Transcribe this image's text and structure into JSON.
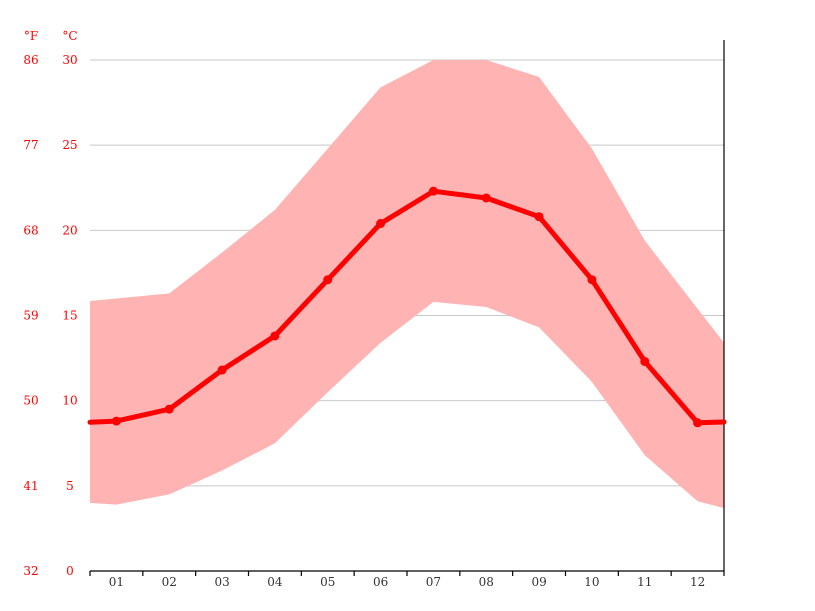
{
  "chart_data": {
    "type": "line",
    "title": "",
    "xlabel": "",
    "ylabel": "",
    "units": {
      "fahrenheit": "°F",
      "celsius": "°C"
    },
    "categories": [
      "01",
      "02",
      "03",
      "04",
      "05",
      "06",
      "07",
      "08",
      "09",
      "10",
      "11",
      "12"
    ],
    "ylim": [
      0,
      30
    ],
    "y_ticks_celsius": [
      "0",
      "5",
      "10",
      "15",
      "20",
      "25",
      "30"
    ],
    "y_ticks_fahrenheit": [
      "32",
      "41",
      "50",
      "59",
      "68",
      "77",
      "86"
    ],
    "grid": true,
    "series": [
      {
        "role": "mean",
        "values": [
          8.8,
          9.5,
          11.8,
          13.8,
          17.1,
          20.4,
          22.3,
          21.9,
          20.8,
          17.1,
          12.3,
          8.7
        ]
      },
      {
        "role": "band-max",
        "values": [
          16.0,
          16.3,
          18.7,
          21.2,
          24.8,
          28.4,
          30.0,
          30.0,
          29.0,
          24.8,
          19.4,
          15.4
        ]
      },
      {
        "role": "band-min",
        "values": [
          3.9,
          4.5,
          5.9,
          7.5,
          10.5,
          13.4,
          15.8,
          15.5,
          14.3,
          11.1,
          6.8,
          4.1
        ]
      }
    ],
    "colors": {
      "line": "#ff0000",
      "band": "#ffb3b3"
    }
  }
}
